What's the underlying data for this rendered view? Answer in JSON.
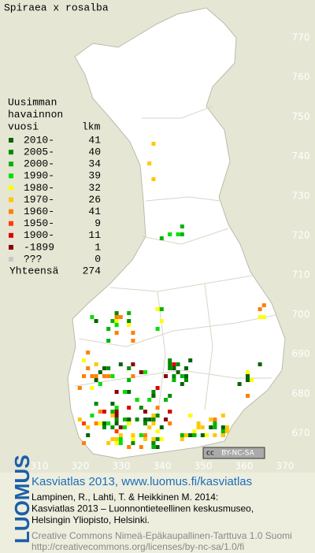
{
  "title": "Spiraea x rosalba",
  "legend": {
    "heading": [
      "Uusimman",
      "havainnon",
      "vuosi"
    ],
    "count_heading": "lkm",
    "rows": [
      {
        "label": "2010-",
        "count": 41,
        "color": "#006400"
      },
      {
        "label": "2005-",
        "count": 40,
        "color": "#008c00"
      },
      {
        "label": "2000-",
        "count": 34,
        "color": "#00b400"
      },
      {
        "label": "1990-",
        "count": 39,
        "color": "#00e000"
      },
      {
        "label": "1980-",
        "count": 32,
        "color": "#ffff00"
      },
      {
        "label": "1970-",
        "count": 26,
        "color": "#ffc800"
      },
      {
        "label": "1960-",
        "count": 41,
        "color": "#ff8000"
      },
      {
        "label": "1950-",
        "count": 9,
        "color": "#ff3c00"
      },
      {
        "label": "1900-",
        "count": 11,
        "color": "#dc0000"
      },
      {
        "label": "-1899",
        "count": 1,
        "color": "#8c0000"
      },
      {
        "label": "???",
        "count": 0,
        "color": "#c8c8c8"
      }
    ],
    "total_label": "Yhteensä",
    "total": 274
  },
  "grid": {
    "y_labels": [
      770,
      760,
      750,
      740,
      730,
      720,
      710,
      700,
      690,
      680,
      670
    ],
    "x_labels": [
      310,
      320,
      330,
      340,
      350,
      360,
      370
    ]
  },
  "license_badge": [
    "cc",
    "BY-NC-SA"
  ],
  "footer": {
    "logo": "LUOMUS",
    "headline": "Kasviatlas 2013, www.luomus.fi/kasviatlas",
    "citation": [
      "Lampinen, R., Lahti, T. & Heikkinen M. 2014:",
      "Kasviatlas 2013 – Luonnontieteellinen keskusmuseo,",
      "Helsingin Yliopisto, Helsinki."
    ],
    "license": [
      "Creative Commons Nimeä-Epäkaupallinen-Tarttuva 1.0 Suomi",
      "http://creativecommons.org/licenses/by-nc-sa/1.0/fi"
    ]
  }
}
